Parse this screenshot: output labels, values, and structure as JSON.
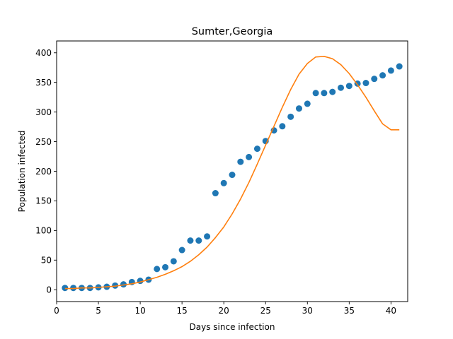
{
  "chart_data": {
    "type": "scatter",
    "title": "Sumter,Georgia",
    "xlabel": "Days since infection",
    "ylabel": "Population infected",
    "xlim": [
      0,
      42
    ],
    "ylim": [
      -20,
      420
    ],
    "xticks": [
      0,
      5,
      10,
      15,
      20,
      25,
      30,
      35,
      40
    ],
    "yticks": [
      0,
      50,
      100,
      150,
      200,
      250,
      300,
      350,
      400
    ],
    "grid": false,
    "legend": "none",
    "series": [
      {
        "kind": "scatter",
        "color": "#1f77b4",
        "x": [
          1,
          2,
          3,
          4,
          5,
          6,
          7,
          8,
          9,
          10,
          11,
          12,
          13,
          14,
          15,
          16,
          17,
          18,
          19,
          20,
          21,
          22,
          23,
          24,
          25,
          26,
          27,
          28,
          29,
          30,
          31,
          32,
          33,
          34,
          35,
          36,
          37,
          38,
          39,
          40,
          41
        ],
        "y": [
          3,
          3,
          3,
          3,
          4,
          5,
          7,
          9,
          13,
          15,
          17,
          35,
          38,
          48,
          67,
          83,
          83,
          90,
          163,
          180,
          194,
          216,
          224,
          238,
          251,
          269,
          276,
          292,
          306,
          314,
          332,
          332,
          334,
          341,
          344,
          348,
          349,
          356,
          362,
          370,
          377
        ]
      },
      {
        "kind": "line",
        "color": "#ff7f0e",
        "x": [
          1,
          2,
          3,
          4,
          5,
          6,
          7,
          8,
          9,
          10,
          11,
          12,
          13,
          14,
          15,
          16,
          17,
          18,
          19,
          20,
          21,
          22,
          23,
          24,
          25,
          26,
          27,
          28,
          29,
          30,
          31,
          32,
          33,
          34,
          35,
          36,
          37,
          38,
          39,
          40,
          41
        ],
        "y": [
          2,
          2,
          3,
          3,
          4,
          5,
          6,
          8,
          10,
          13,
          17,
          21,
          26,
          32,
          39,
          48,
          59,
          72,
          88,
          106,
          128,
          153,
          181,
          212,
          244,
          276,
          308,
          338,
          364,
          382,
          393,
          394,
          390,
          380,
          365,
          346,
          325,
          302,
          280,
          270,
          270
        ]
      }
    ]
  }
}
